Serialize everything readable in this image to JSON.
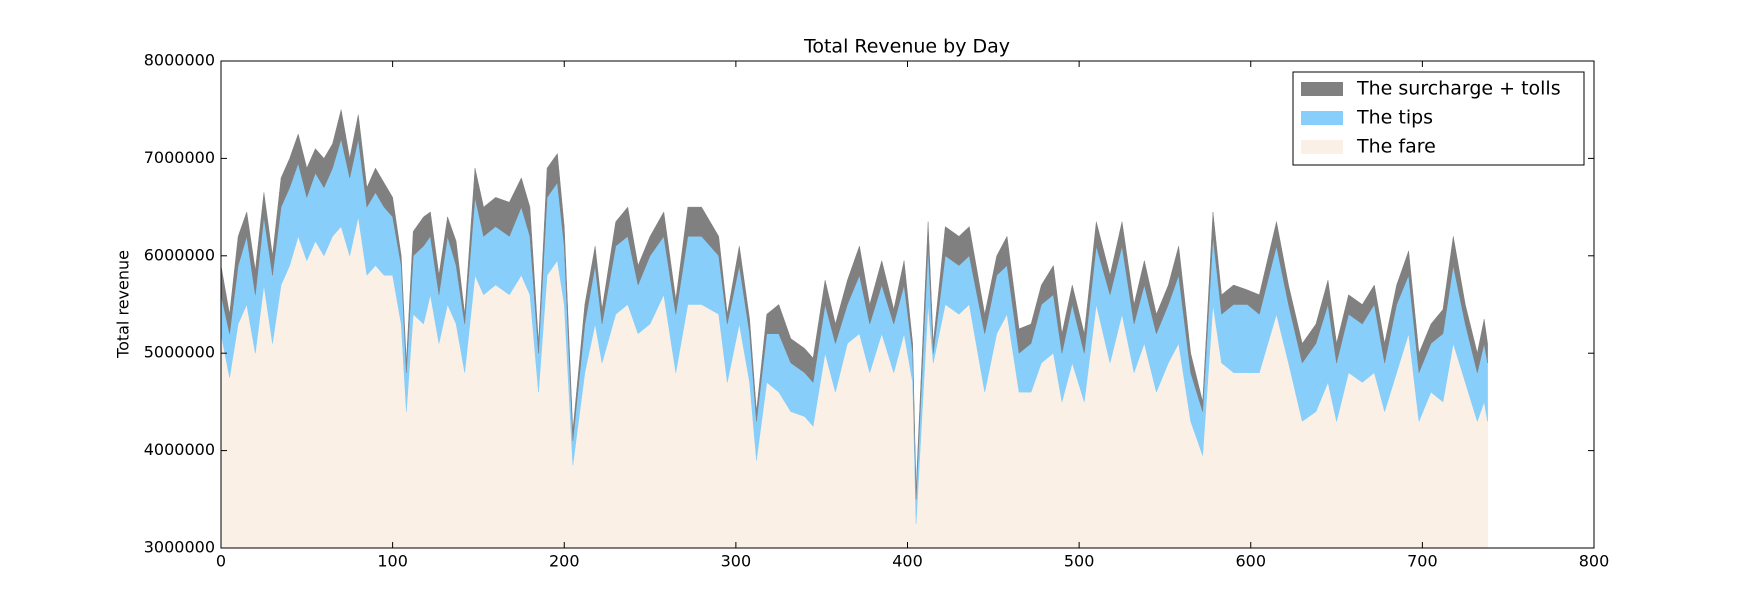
{
  "chart_data": {
    "type": "stacked_area",
    "title": "Total Revenue by Day",
    "ylabel": "Total revenue",
    "x": [
      0,
      5,
      10,
      15,
      20,
      25,
      30,
      35,
      40,
      45,
      50,
      55,
      60,
      65,
      70,
      75,
      80,
      85,
      90,
      95,
      100,
      105,
      108,
      112,
      118,
      122,
      127,
      132,
      137,
      142,
      148,
      153,
      160,
      168,
      175,
      180,
      185,
      190,
      196,
      200,
      205,
      212,
      218,
      222,
      230,
      237,
      243,
      250,
      258,
      265,
      272,
      280,
      290,
      295,
      302,
      308,
      312,
      318,
      325,
      332,
      340,
      345,
      352,
      358,
      365,
      372,
      378,
      385,
      392,
      398,
      403,
      405,
      412,
      415,
      422,
      430,
      436,
      445,
      452,
      458,
      465,
      472,
      478,
      485,
      490,
      496,
      503,
      510,
      518,
      525,
      532,
      538,
      545,
      552,
      558,
      565,
      572,
      578,
      583,
      590,
      598,
      605,
      615,
      622,
      630,
      638,
      645,
      650,
      657,
      665,
      672,
      678,
      685,
      692,
      698,
      705,
      712,
      718,
      725,
      732,
      736,
      738
    ],
    "series": [
      {
        "name": "The surcharge + tolls",
        "color": "#808080",
        "values": [
          300000,
          200000,
          300000,
          250000,
          250000,
          250000,
          200000,
          300000,
          300000,
          300000,
          300000,
          250000,
          300000,
          250000,
          300000,
          200000,
          250000,
          200000,
          250000,
          250000,
          200000,
          100000,
          100000,
          250000,
          300000,
          250000,
          200000,
          200000,
          250000,
          100000,
          300000,
          300000,
          300000,
          350000,
          300000,
          300000,
          100000,
          300000,
          300000,
          200000,
          100000,
          200000,
          200000,
          150000,
          250000,
          300000,
          200000,
          200000,
          250000,
          150000,
          300000,
          300000,
          200000,
          100000,
          200000,
          150000,
          100000,
          200000,
          300000,
          250000,
          250000,
          250000,
          250000,
          200000,
          250000,
          300000,
          200000,
          250000,
          150000,
          250000,
          100000,
          100000,
          250000,
          100000,
          300000,
          300000,
          300000,
          200000,
          200000,
          300000,
          250000,
          200000,
          200000,
          300000,
          200000,
          200000,
          200000,
          250000,
          200000,
          250000,
          200000,
          250000,
          200000,
          200000,
          300000,
          200000,
          100000,
          250000,
          200000,
          200000,
          150000,
          200000,
          250000,
          200000,
          200000,
          200000,
          250000,
          200000,
          200000,
          200000,
          200000,
          200000,
          200000,
          250000,
          200000,
          200000,
          250000,
          300000,
          200000,
          200000,
          250000,
          200000
        ]
      },
      {
        "name": "The tips",
        "color": "#87cefa",
        "values": [
          400000,
          450000,
          600000,
          700000,
          600000,
          700000,
          700000,
          800000,
          800000,
          750000,
          650000,
          700000,
          700000,
          700000,
          900000,
          800000,
          800000,
          700000,
          750000,
          700000,
          600000,
          600000,
          400000,
          600000,
          800000,
          600000,
          500000,
          700000,
          600000,
          500000,
          800000,
          600000,
          600000,
          600000,
          700000,
          600000,
          400000,
          800000,
          800000,
          600000,
          250000,
          500000,
          600000,
          400000,
          700000,
          700000,
          500000,
          700000,
          600000,
          600000,
          700000,
          700000,
          600000,
          600000,
          600000,
          500000,
          400000,
          500000,
          600000,
          500000,
          450000,
          450000,
          500000,
          500000,
          400000,
          600000,
          500000,
          500000,
          500000,
          500000,
          300000,
          250000,
          600000,
          100000,
          500000,
          500000,
          500000,
          600000,
          600000,
          500000,
          400000,
          500000,
          600000,
          600000,
          500000,
          600000,
          500000,
          600000,
          700000,
          700000,
          500000,
          600000,
          600000,
          600000,
          700000,
          500000,
          450000,
          700000,
          500000,
          700000,
          700000,
          600000,
          700000,
          600000,
          600000,
          700000,
          800000,
          600000,
          600000,
          600000,
          700000,
          500000,
          700000,
          600000,
          500000,
          500000,
          700000,
          800000,
          600000,
          500000,
          600000,
          600000
        ]
      },
      {
        "name": "The fare",
        "color": "#faf0e6",
        "values": [
          5200000,
          4750000,
          5300000,
          5500000,
          5000000,
          5700000,
          5100000,
          5700000,
          5900000,
          6200000,
          5950000,
          6150000,
          6000000,
          6200000,
          6300000,
          6000000,
          6400000,
          5800000,
          5900000,
          5800000,
          5800000,
          5300000,
          4400000,
          5400000,
          5300000,
          5600000,
          5100000,
          5500000,
          5300000,
          4800000,
          5800000,
          5600000,
          5700000,
          5600000,
          5800000,
          5600000,
          4600000,
          5800000,
          5950000,
          5500000,
          3850000,
          4800000,
          5300000,
          4900000,
          5400000,
          5500000,
          5200000,
          5300000,
          5600000,
          4800000,
          5500000,
          5500000,
          5400000,
          4700000,
          5300000,
          4700000,
          3900000,
          4700000,
          4600000,
          4400000,
          4350000,
          4250000,
          5000000,
          4600000,
          5100000,
          5200000,
          4800000,
          5200000,
          4800000,
          5200000,
          4700000,
          3250000,
          5500000,
          4900000,
          5500000,
          5400000,
          5500000,
          4600000,
          5200000,
          5400000,
          4600000,
          4600000,
          4900000,
          5000000,
          4500000,
          4900000,
          4500000,
          5500000,
          4900000,
          5400000,
          4800000,
          5100000,
          4600000,
          4900000,
          5100000,
          4300000,
          3950000,
          5500000,
          4900000,
          4800000,
          4800000,
          4800000,
          5400000,
          4900000,
          4300000,
          4400000,
          4700000,
          4300000,
          4800000,
          4700000,
          4800000,
          4400000,
          4800000,
          5200000,
          4300000,
          4600000,
          4500000,
          5100000,
          4700000,
          4300000,
          4500000,
          4300000
        ]
      }
    ],
    "xlim": [
      0,
      800
    ],
    "xticks": [
      0,
      100,
      200,
      300,
      400,
      500,
      600,
      700,
      800
    ],
    "ylim": [
      3000000,
      8000000
    ],
    "yticks": [
      3000000,
      4000000,
      5000000,
      6000000,
      7000000,
      8000000
    ],
    "legend": "upper right"
  }
}
